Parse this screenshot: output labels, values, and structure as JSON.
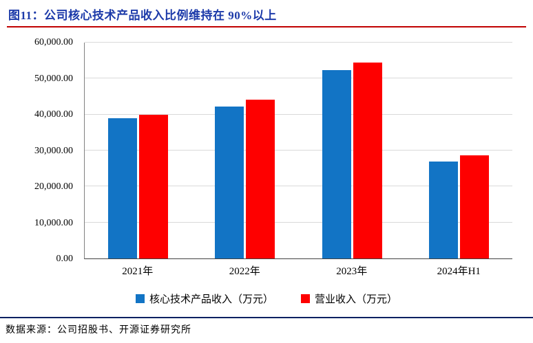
{
  "title": "图11：公司核心技术产品收入比例维持在 90%以上",
  "source": "数据来源：公司招股书、开源证券研究所",
  "colors": {
    "title": "#1c3aa9",
    "title_rule": "#c00000",
    "footer_rule": "#002060",
    "grid": "#d9d9d9"
  },
  "chart_data": {
    "type": "bar",
    "title": "公司核心技术产品收入比例维持在 90%以上",
    "categories": [
      "2021年",
      "2022年",
      "2023年",
      "2024年H1"
    ],
    "series": [
      {
        "name": "核心技术产品收入（万元）",
        "color": "#1274c5",
        "values": [
          39000,
          42300,
          52300,
          26900
        ]
      },
      {
        "name": "营业收入（万元）",
        "color": "#fe0000",
        "values": [
          40000,
          44200,
          54500,
          28700
        ]
      }
    ],
    "xlabel": "",
    "ylabel": "",
    "ylim": [
      0,
      60000
    ],
    "ytick_values": [
      0,
      10000,
      20000,
      30000,
      40000,
      50000,
      60000
    ],
    "ytick_labels": [
      "0.00",
      "10,000.00",
      "20,000.00",
      "30,000.00",
      "40,000.00",
      "50,000.00",
      "60,000.00"
    ],
    "grid": true,
    "legend_position": "bottom"
  }
}
